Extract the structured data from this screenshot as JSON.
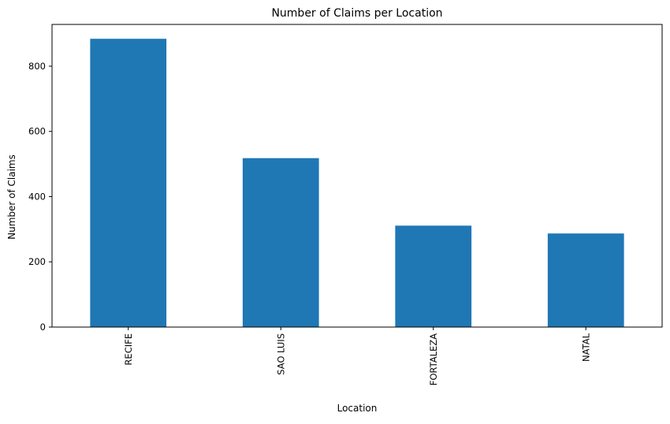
{
  "chart_data": {
    "type": "bar",
    "title": "Number of Claims per Location",
    "xlabel": "Location",
    "ylabel": "Number of Claims",
    "categories": [
      "RECIFE",
      "SAO LUIS",
      "FORTALEZA",
      "NATAL"
    ],
    "values": [
      884,
      518,
      311,
      287
    ],
    "ylim": [
      0,
      928
    ],
    "yticks": [
      0,
      200,
      400,
      600,
      800
    ],
    "grid": false,
    "legend": "none",
    "bar_color": "#1f77b4"
  }
}
